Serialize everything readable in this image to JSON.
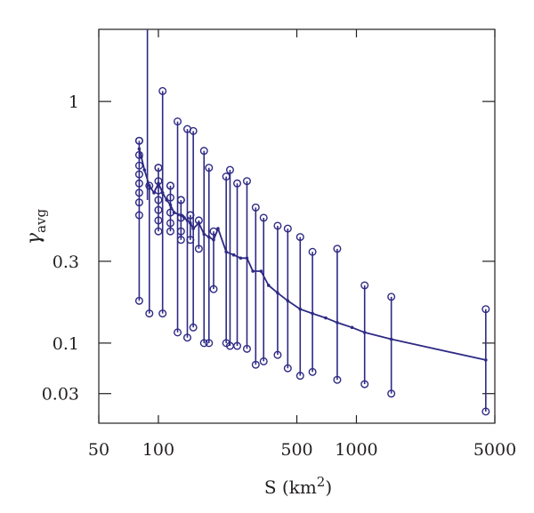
{
  "chart_data": {
    "type": "line",
    "xlabel": "S (km",
    "xlabel_sup": "2",
    "xlabel_close": ")",
    "ylabel_main": "γ",
    "ylabel_sub": "avg",
    "x_scale": "log",
    "xlim": [
      50,
      5000
    ],
    "y_scale": "sqrt",
    "ylim": [
      0.008,
      1.45
    ],
    "x_ticks": [
      {
        "value": 50,
        "label": "50"
      },
      {
        "value": 100,
        "label": "100"
      },
      {
        "value": 500,
        "label": "500"
      },
      {
        "value": 1000,
        "label": "1000"
      },
      {
        "value": 5000,
        "label": "5000"
      }
    ],
    "y_ticks": [
      {
        "value": 0.03,
        "label": "0.03"
      },
      {
        "value": 0.1,
        "label": "0.1"
      },
      {
        "value": 0.3,
        "label": "0.3"
      },
      {
        "value": 1,
        "label": "1"
      }
    ],
    "grid": false,
    "color": "#2e2a85",
    "mean_line": {
      "x": [
        80,
        82,
        85,
        90,
        95,
        100,
        105,
        110,
        115,
        120,
        130,
        135,
        140,
        145,
        150,
        160,
        170,
        180,
        190,
        200,
        220,
        240,
        260,
        280,
        300,
        330,
        360,
        400,
        450,
        520,
        600,
        700,
        800,
        950,
        1100,
        1500,
        4500
      ],
      "y": [
        0.75,
        0.71,
        0.65,
        0.58,
        0.55,
        0.59,
        0.55,
        0.52,
        0.5,
        0.47,
        0.46,
        0.45,
        0.44,
        0.43,
        0.41,
        0.43,
        0.39,
        0.38,
        0.37,
        0.41,
        0.33,
        0.32,
        0.31,
        0.31,
        0.27,
        0.27,
        0.23,
        0.21,
        0.19,
        0.17,
        0.16,
        0.15,
        0.14,
        0.13,
        0.12,
        0.107,
        0.072
      ]
    },
    "vertical_spike": {
      "x": 88,
      "y_from": 0.52,
      "y_to": 1.45
    },
    "range_bars": [
      {
        "x": 80,
        "min": 0.19,
        "max": 0.79,
        "points": [
          0.79,
          0.72,
          0.67,
          0.63,
          0.59,
          0.55,
          0.51,
          0.46
        ]
      },
      {
        "x": 90,
        "min": 0.16,
        "max": 0.58,
        "points": []
      },
      {
        "x": 100,
        "min": 0.4,
        "max": 0.66,
        "points": [
          0.66,
          0.6,
          0.56,
          0.52,
          0.48,
          0.44
        ]
      },
      {
        "x": 105,
        "min": 0.16,
        "max": 1.06,
        "points": []
      },
      {
        "x": 115,
        "min": 0.4,
        "max": 0.58,
        "points": [
          0.58,
          0.53,
          0.47,
          0.43
        ]
      },
      {
        "x": 125,
        "min": 0.12,
        "max": 0.89,
        "points": []
      },
      {
        "x": 130,
        "min": 0.37,
        "max": 0.52,
        "points": [
          0.52,
          0.45,
          0.4
        ]
      },
      {
        "x": 140,
        "min": 0.11,
        "max": 0.85,
        "points": []
      },
      {
        "x": 145,
        "min": 0.37,
        "max": 0.46,
        "points": [
          0.46
        ]
      },
      {
        "x": 150,
        "min": 0.13,
        "max": 0.84,
        "points": []
      },
      {
        "x": 160,
        "min": 0.34,
        "max": 0.44,
        "points": []
      },
      {
        "x": 170,
        "min": 0.1,
        "max": 0.74,
        "points": []
      },
      {
        "x": 180,
        "min": 0.1,
        "max": 0.66,
        "points": []
      },
      {
        "x": 190,
        "min": 0.22,
        "max": 0.4,
        "points": []
      },
      {
        "x": 220,
        "min": 0.1,
        "max": 0.62,
        "points": []
      },
      {
        "x": 230,
        "min": 0.095,
        "max": 0.65,
        "points": []
      },
      {
        "x": 250,
        "min": 0.095,
        "max": 0.59,
        "points": []
      },
      {
        "x": 280,
        "min": 0.09,
        "max": 0.6,
        "points": []
      },
      {
        "x": 310,
        "min": 0.065,
        "max": 0.49,
        "points": []
      },
      {
        "x": 340,
        "min": 0.07,
        "max": 0.45,
        "points": []
      },
      {
        "x": 400,
        "min": 0.08,
        "max": 0.42,
        "points": []
      },
      {
        "x": 450,
        "min": 0.06,
        "max": 0.41,
        "points": []
      },
      {
        "x": 520,
        "min": 0.05,
        "max": 0.38,
        "points": []
      },
      {
        "x": 600,
        "min": 0.055,
        "max": 0.33,
        "points": []
      },
      {
        "x": 800,
        "min": 0.045,
        "max": 0.34,
        "points": []
      },
      {
        "x": 1100,
        "min": 0.04,
        "max": 0.23,
        "points": []
      },
      {
        "x": 1500,
        "min": 0.03,
        "max": 0.2,
        "points": []
      },
      {
        "x": 4500,
        "min": 0.015,
        "max": 0.17,
        "points": []
      }
    ]
  }
}
